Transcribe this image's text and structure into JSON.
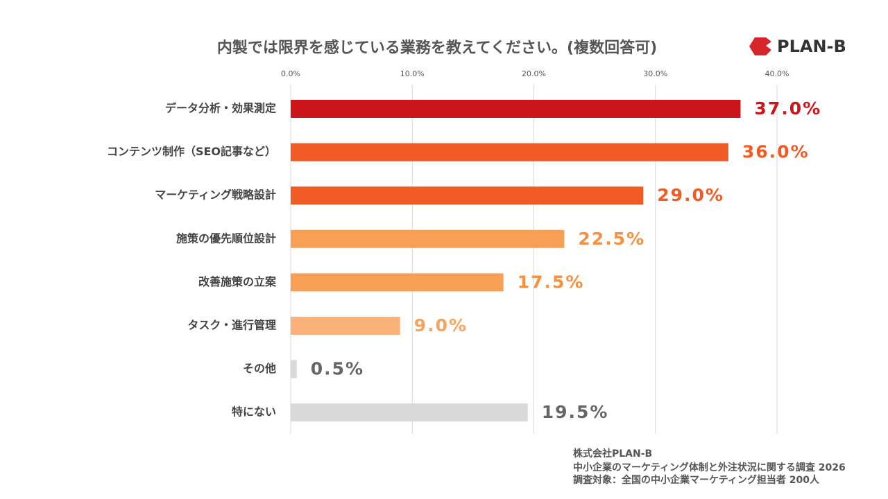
{
  "chart_data": {
    "type": "bar",
    "orientation": "horizontal",
    "title": "内製では限界を感じている業務を教えてください。(複数回答可)",
    "categories": [
      "データ分析・効果測定",
      "コンテンツ制作（SEO記事など）",
      "マーケティング戦略設計",
      "施策の優先順位設計",
      "改善施策の立案",
      "タスク・進行管理",
      "その他",
      "特にない"
    ],
    "values": [
      37.0,
      36.0,
      29.0,
      22.5,
      17.5,
      9.0,
      0.5,
      19.5
    ],
    "value_labels": [
      "37.0%",
      "36.0%",
      "29.0%",
      "22.5%",
      "17.5%",
      "9.0%",
      "0.5%",
      "19.5%"
    ],
    "colors": [
      "#cc151b",
      "#f05a24",
      "#f05a24",
      "#f79f55",
      "#f79f55",
      "#fbb27a",
      "#d9d9d9",
      "#d9d9d9"
    ],
    "label_colors": [
      "#cc151b",
      "#f05a24",
      "#f05a24",
      "#f7913f",
      "#f7913f",
      "#f7a55e",
      "#666666",
      "#666666"
    ],
    "xlim": [
      0,
      40
    ],
    "xticks": [
      {
        "value": 0,
        "label": "0.0%"
      },
      {
        "value": 10,
        "label": "10.0%"
      },
      {
        "value": 20,
        "label": "20.0%"
      },
      {
        "value": 30,
        "label": "30.0%"
      },
      {
        "value": 40,
        "label": "40.0%"
      }
    ],
    "grid": true
  },
  "logo": "PLAN-B",
  "footer": [
    "株式会社PLAN-B",
    "中小企業のマーケティング体制と外注状況に関する調査 2026",
    "調査対象：全国の中小企業マーケティング担当者 200人"
  ]
}
